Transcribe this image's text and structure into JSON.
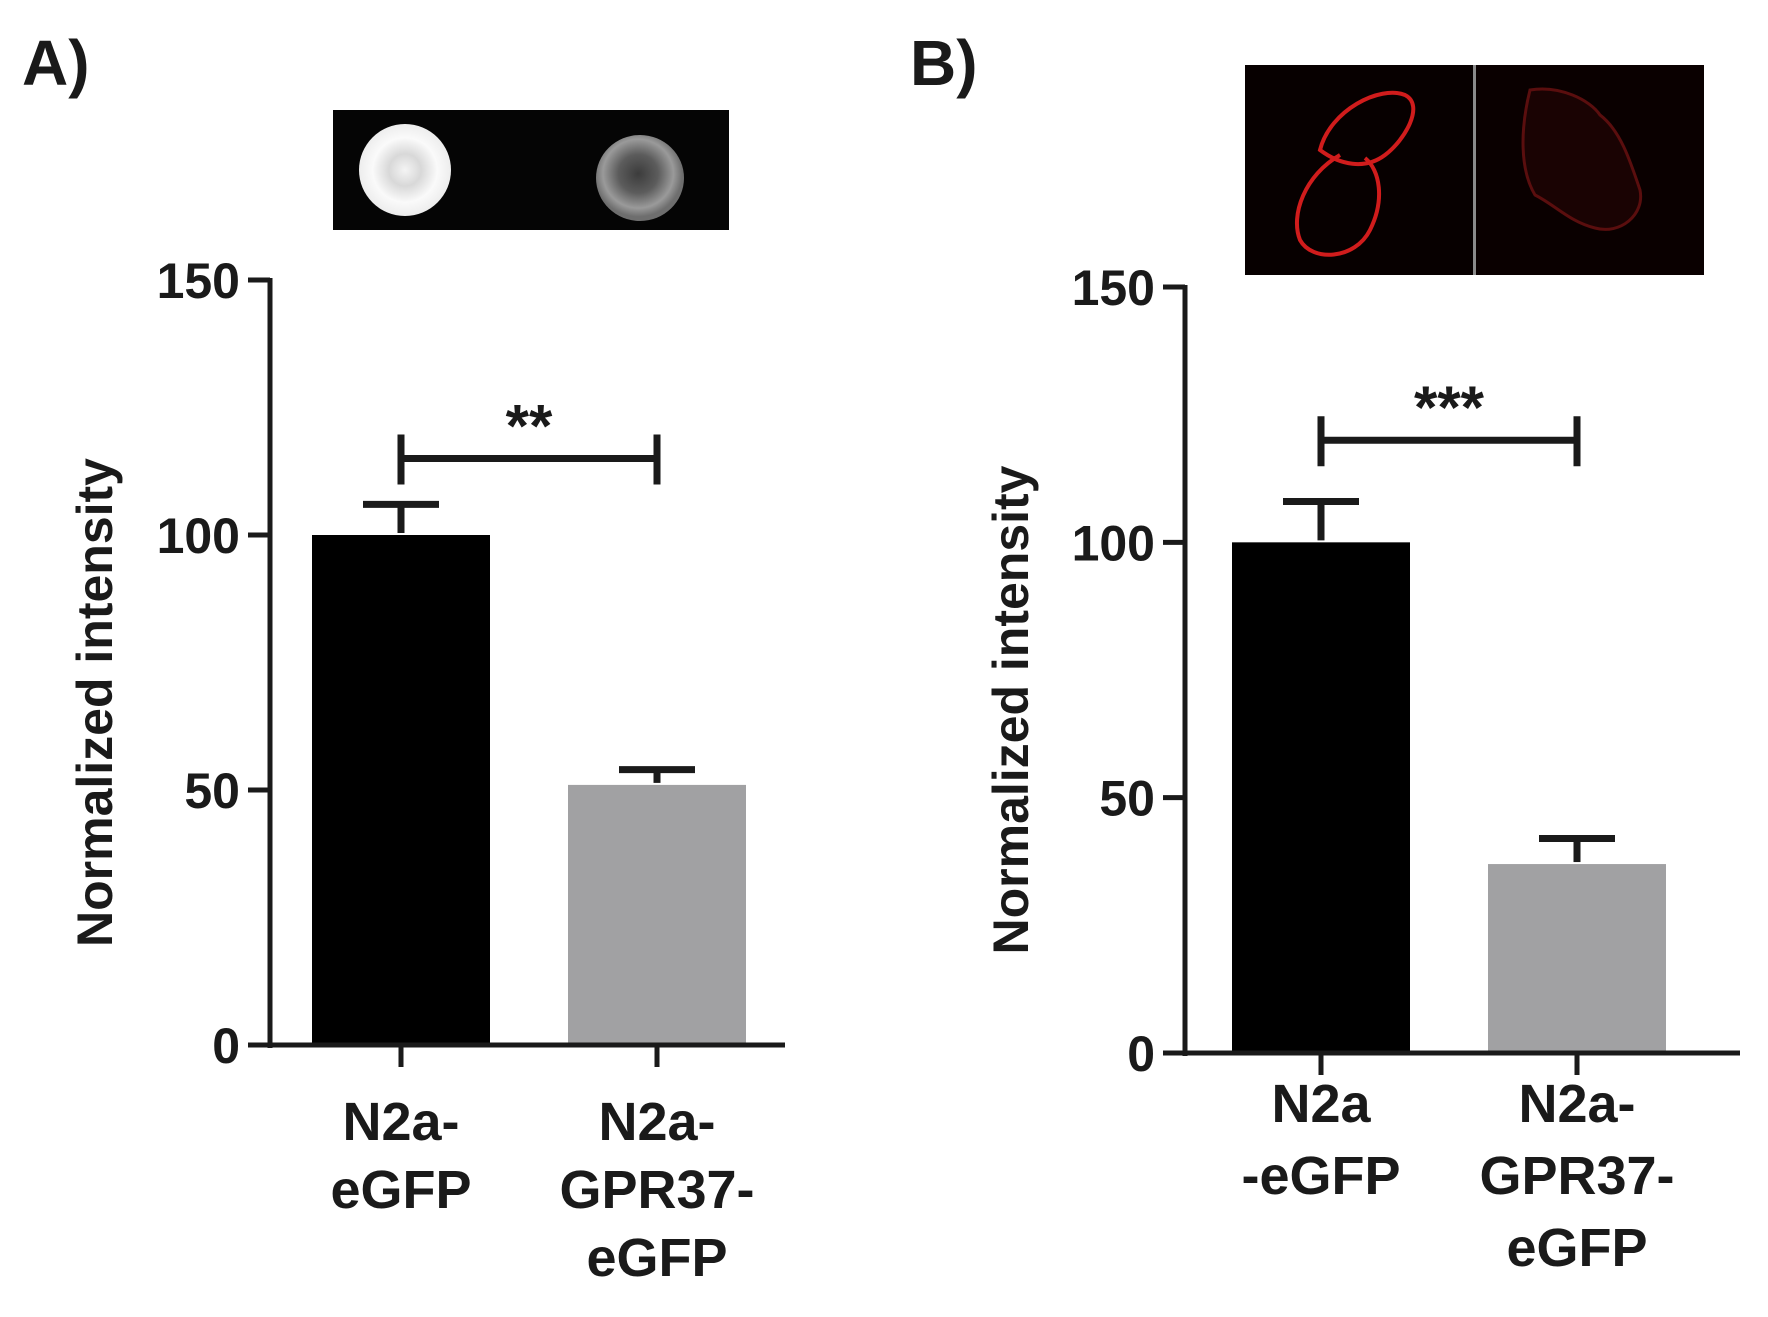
{
  "figure": {
    "panels": [
      {
        "label": "A)"
      },
      {
        "label": "B)"
      }
    ]
  },
  "chart_data": [
    {
      "type": "bar",
      "panel": "A)",
      "categories": [
        [
          "N2a-",
          "eGFP"
        ],
        [
          "N2a-",
          "GPR37-",
          "eGFP"
        ]
      ],
      "values": [
        100,
        51
      ],
      "errors": [
        6,
        3
      ],
      "bar_colors": [
        "#000000",
        "#a1a1a3"
      ],
      "ylabel": "Normalized intensity",
      "ylim": [
        0,
        150
      ],
      "yticks": [
        0,
        50,
        100,
        150
      ],
      "significance": {
        "label": "**",
        "y": 115
      },
      "inset": {
        "kind": "dot blot",
        "description_visible": false
      }
    },
    {
      "type": "bar",
      "panel": "B)",
      "categories": [
        [
          "N2a",
          "-eGFP"
        ],
        [
          "N2a-",
          "GPR37-",
          "eGFP"
        ]
      ],
      "values": [
        100,
        37
      ],
      "errors": [
        8,
        5
      ],
      "bar_colors": [
        "#000000",
        "#a1a1a3"
      ],
      "ylabel": "Normalized intensity",
      "ylim": [
        0,
        150
      ],
      "yticks": [
        0,
        50,
        100,
        150
      ],
      "significance": {
        "label": "***",
        "y": 120
      },
      "inset": {
        "kind": "red fluorescence micrographs",
        "description_visible": false
      }
    }
  ]
}
